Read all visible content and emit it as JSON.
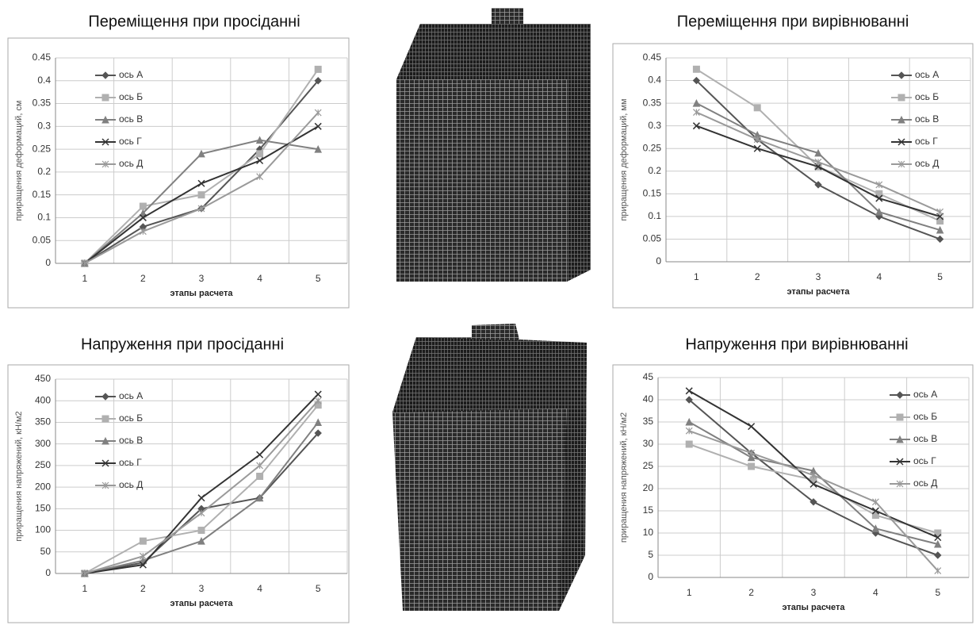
{
  "chart_data": [
    {
      "type": "line",
      "title": "Переміщення при просіданні",
      "xlabel": "этапы расчета",
      "ylabel": "приращения деформаций, см",
      "categories": [
        "1",
        "2",
        "3",
        "4",
        "5"
      ],
      "ylim": [
        0,
        0.45
      ],
      "yticks": [
        0,
        0.05,
        0.1,
        0.15,
        0.2,
        0.25,
        0.3,
        0.35,
        0.4,
        0.45
      ],
      "grid": true,
      "legend": "upper left",
      "series": [
        {
          "name": "ось А",
          "color": "#555555",
          "marker": "diamond",
          "values": [
            0,
            0.08,
            0.12,
            0.25,
            0.4
          ]
        },
        {
          "name": "ось Б",
          "color": "#b0b0b0",
          "marker": "square",
          "values": [
            0,
            0.125,
            0.15,
            0.24,
            0.425
          ]
        },
        {
          "name": "ось В",
          "color": "#808080",
          "marker": "triangle",
          "values": [
            0,
            0.11,
            0.24,
            0.27,
            0.25
          ]
        },
        {
          "name": "ось Г",
          "color": "#333333",
          "marker": "x",
          "values": [
            0,
            0.1,
            0.175,
            0.225,
            0.3
          ]
        },
        {
          "name": "ось Д",
          "color": "#9a9a9a",
          "marker": "star",
          "values": [
            0,
            0.07,
            0.12,
            0.19,
            0.33
          ]
        }
      ]
    },
    {
      "type": "line",
      "title": "Переміщення при вирівнюванні",
      "xlabel": "этапы расчета",
      "ylabel": "приращения деформаций, мм",
      "categories": [
        "1",
        "2",
        "3",
        "4",
        "5"
      ],
      "ylim": [
        0,
        0.45
      ],
      "yticks": [
        0,
        0.05,
        0.1,
        0.15,
        0.2,
        0.25,
        0.3,
        0.35,
        0.4,
        0.45
      ],
      "grid": true,
      "legend": "upper right",
      "series": [
        {
          "name": "ось А",
          "color": "#555555",
          "marker": "diamond",
          "values": [
            0.4,
            0.27,
            0.17,
            0.1,
            0.05
          ]
        },
        {
          "name": "ось Б",
          "color": "#b0b0b0",
          "marker": "square",
          "values": [
            0.425,
            0.34,
            0.21,
            0.15,
            0.09
          ]
        },
        {
          "name": "ось В",
          "color": "#808080",
          "marker": "triangle",
          "values": [
            0.35,
            0.28,
            0.24,
            0.11,
            0.07
          ]
        },
        {
          "name": "ось Г",
          "color": "#333333",
          "marker": "x",
          "values": [
            0.3,
            0.25,
            0.21,
            0.14,
            0.1
          ]
        },
        {
          "name": "ось Д",
          "color": "#9a9a9a",
          "marker": "star",
          "values": [
            0.33,
            0.27,
            0.22,
            0.17,
            0.11
          ]
        }
      ]
    },
    {
      "type": "line",
      "title": "Напруження при просіданні",
      "xlabel": "этапы расчета",
      "ylabel": "приращения напряжений, кН/м2",
      "categories": [
        "1",
        "2",
        "3",
        "4",
        "5"
      ],
      "ylim": [
        0,
        450
      ],
      "yticks": [
        0,
        50,
        100,
        150,
        200,
        250,
        300,
        350,
        400,
        450
      ],
      "grid": true,
      "legend": "upper left",
      "series": [
        {
          "name": "ось А",
          "color": "#555555",
          "marker": "diamond",
          "values": [
            0,
            25,
            150,
            175,
            325
          ]
        },
        {
          "name": "ось Б",
          "color": "#b0b0b0",
          "marker": "square",
          "values": [
            0,
            75,
            100,
            225,
            390
          ]
        },
        {
          "name": "ось В",
          "color": "#808080",
          "marker": "triangle",
          "values": [
            0,
            30,
            75,
            175,
            350
          ]
        },
        {
          "name": "ось Г",
          "color": "#333333",
          "marker": "x",
          "values": [
            0,
            20,
            175,
            275,
            415
          ]
        },
        {
          "name": "ось Д",
          "color": "#9a9a9a",
          "marker": "star",
          "values": [
            0,
            40,
            140,
            250,
            400
          ]
        }
      ]
    },
    {
      "type": "line",
      "title": "Напруження при вирівнюванні",
      "xlabel": "этапы расчета",
      "ylabel": "приращения напряжений, кН/м2",
      "categories": [
        "1",
        "2",
        "3",
        "4",
        "5"
      ],
      "ylim": [
        0,
        45
      ],
      "yticks": [
        0,
        5,
        10,
        15,
        20,
        25,
        30,
        35,
        40,
        45
      ],
      "grid": true,
      "legend": "upper right",
      "series": [
        {
          "name": "ось А",
          "color": "#555555",
          "marker": "diamond",
          "values": [
            40,
            28,
            17,
            10,
            5
          ]
        },
        {
          "name": "ось Б",
          "color": "#b0b0b0",
          "marker": "square",
          "values": [
            30,
            25,
            22,
            14,
            10
          ]
        },
        {
          "name": "ось В",
          "color": "#808080",
          "marker": "triangle",
          "values": [
            35,
            27,
            24,
            11,
            7.5
          ]
        },
        {
          "name": "ось Г",
          "color": "#333333",
          "marker": "x",
          "values": [
            42,
            34,
            21,
            15,
            9
          ]
        },
        {
          "name": "ось Д",
          "color": "#9a9a9a",
          "marker": "star",
          "values": [
            33,
            28,
            23,
            17,
            1.5
          ]
        }
      ]
    }
  ]
}
